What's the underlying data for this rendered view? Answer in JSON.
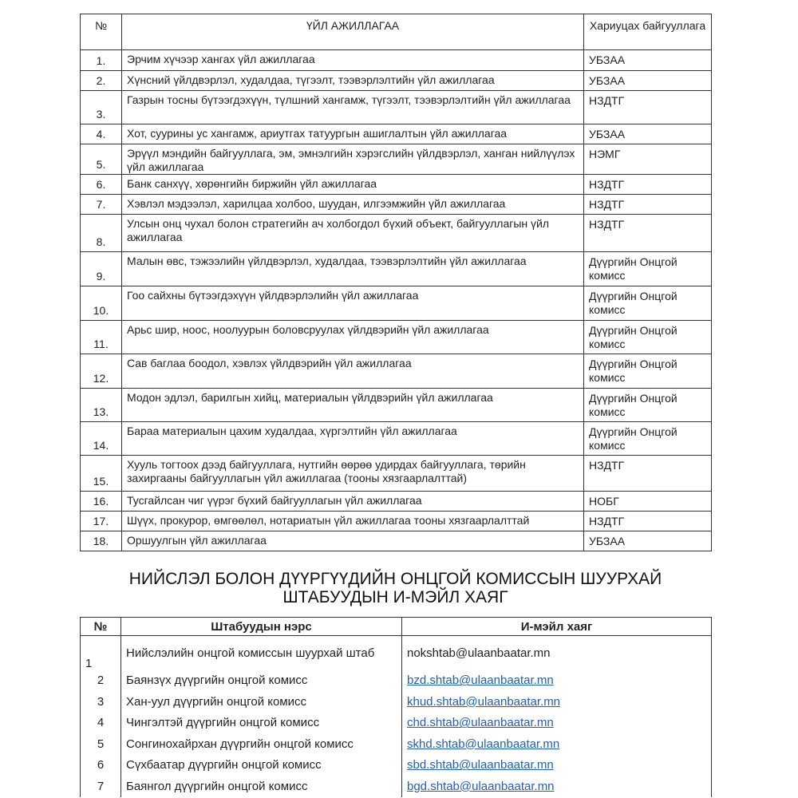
{
  "activities_table": {
    "headers": {
      "num": "№",
      "activity": "ҮЙЛ АЖИЛЛАГАА",
      "org": "Хариуцах байгууллага"
    },
    "rows": [
      {
        "num": "1.",
        "activity": "Эрчим хүчээр хангах үйл ажиллагаа",
        "org": "УБЗАА"
      },
      {
        "num": "2.",
        "activity": "Хүнсний үйлдвэрлэл, худалдаа, түгээлт, тээвэрлэлтийн үйл ажиллагаа",
        "org": "УБЗАА"
      },
      {
        "num": "3.",
        "activity": "Газрын тосны бүтээгдэхүүн, түлшний хангамж, түгээлт, тээвэрлэлтийн үйл ажиллагаа",
        "org": "НЗДТГ"
      },
      {
        "num": "4.",
        "activity": "Хот, суурины ус хангамж, ариутгах татуургын ашиглалтын үйл ажиллагаа",
        "org": "УБЗАА"
      },
      {
        "num": "5.",
        "activity": "Эрүүл мэндийн байгууллага, эм, эмнэлгийн хэрэгслийн үйлдвэрлэл, ханган нийлүүлэх үйл ажиллагаа",
        "org": "НЭМГ"
      },
      {
        "num": "6.",
        "activity": "Банк санхүү, хөрөнгийн биржийн үйл ажиллагаа",
        "org": "НЗДТГ"
      },
      {
        "num": "7.",
        "activity": "Хэвлэл мэдээлэл, харилцаа холбоо, шуудан, илгээмжийн үйл ажиллагаа",
        "org": "НЗДТГ"
      },
      {
        "num": "8.",
        "activity": "Улсын онц чухал болон стратегийн ач холбогдол бүхий объект, байгууллагын үйл ажиллагаа",
        "org": "НЗДТГ"
      },
      {
        "num": "9.",
        "activity": "Малын өвс, тэжээлийн үйлдвэрлэл, худалдаа, тээвэрлэлтийн үйл ажиллагаа",
        "org": "Дүүргийн Онцгой комисс"
      },
      {
        "num": "10.",
        "activity": "Гоо сайхны бүтээгдэхүүн үйлдвэрлэлийн үйл ажиллагаа",
        "org": "Дүүргийн Онцгой комисс"
      },
      {
        "num": "11.",
        "activity": "Арьс шир, ноос, ноолуурын боловсруулах үйлдвэрийн үйл ажиллагаа",
        "org": "Дүүргийн Онцгой комисс"
      },
      {
        "num": "12.",
        "activity": "Сав баглаа боодол, хэвлэх үйлдвэрийн үйл ажиллагаа",
        "org": "Дүүргийн Онцгой комисс"
      },
      {
        "num": "13.",
        "activity": "Модон эдлэл, барилгын хийц, материалын үйлдвэрийн үйл ажиллагаа",
        "org": "Дүүргийн Онцгой комисс"
      },
      {
        "num": "14.",
        "activity": "Бараа материалын цахим худалдаа, хүргэлтийн үйл ажиллагаа",
        "org": "Дүүргийн Онцгой комисс"
      },
      {
        "num": "15.",
        "activity": "Хууль тогтоох дээд байгууллага, нутгийн өөрөө удирдах байгууллага, төрийн захиргааны байгууллагын үйл ажиллагаа (тооны хязгаарлалттай)",
        "org": "НЗДТГ"
      },
      {
        "num": "16.",
        "activity": "Тусгайлсан чиг үүрэг бүхий байгууллагын үйл ажиллагаа",
        "org": "НОБГ"
      },
      {
        "num": "17.",
        "activity": "Шүүх, прокурор, өмгөөлөл, нотариатын үйл ажиллагаа тооны хязгаарлалттай",
        "org": "НЗДТГ"
      },
      {
        "num": "18.",
        "activity": "Оршуулгын үйл ажиллагаа",
        "org": "УБЗАА"
      }
    ]
  },
  "section_title": {
    "line1": "НИЙСЛЭЛ БОЛОН ДҮҮРГҮҮДИЙН ОНЦГОЙ КОМИССЫН ШУУРХАЙ",
    "line2": "ШТАБУУДЫН И-МЭЙЛ ХАЯГ"
  },
  "email_table": {
    "headers": {
      "num": "№",
      "name": "Штабуудын нэрс",
      "email": "И-мэйл хаяг"
    },
    "link_color": "#1f5fb8",
    "rows": [
      {
        "num": "1",
        "name": "Нийслэлийн онцгой комиссын шуурхай штаб",
        "email": "nokshtab@ulaanbaatar.mn",
        "link": false
      },
      {
        "num": "2",
        "name": "Баянзүх дүүргийн онцгой комисс",
        "email": "bzd.shtab@ulaanbaatar.mn",
        "link": true
      },
      {
        "num": "3",
        "name": "Хан-уул дүүргийн онцгой комисс",
        "email": "khud.shtab@ulaanbaatar.mn",
        "link": true
      },
      {
        "num": "4",
        "name": "Чингэлтэй дүүргийн онцгой комисс",
        "email": "chd.shtab@ulaanbaatar.mn",
        "link": true
      },
      {
        "num": "5",
        "name": "Сонгинохайрхан дүүргийн онцгой комисс",
        "email": "skhd.shtab@ulaanbaatar.mn",
        "link": true
      },
      {
        "num": "6",
        "name": "Сүхбаатар дүүргийн онцгой комисс",
        "email": "sbd.shtab@ulaanbaatar.mn",
        "link": true
      },
      {
        "num": "7",
        "name": "Баянгол дүүргийн онцгой комисс",
        "email": "bgd.shtab@ulaanbaatar.mn",
        "link": true
      }
    ]
  }
}
